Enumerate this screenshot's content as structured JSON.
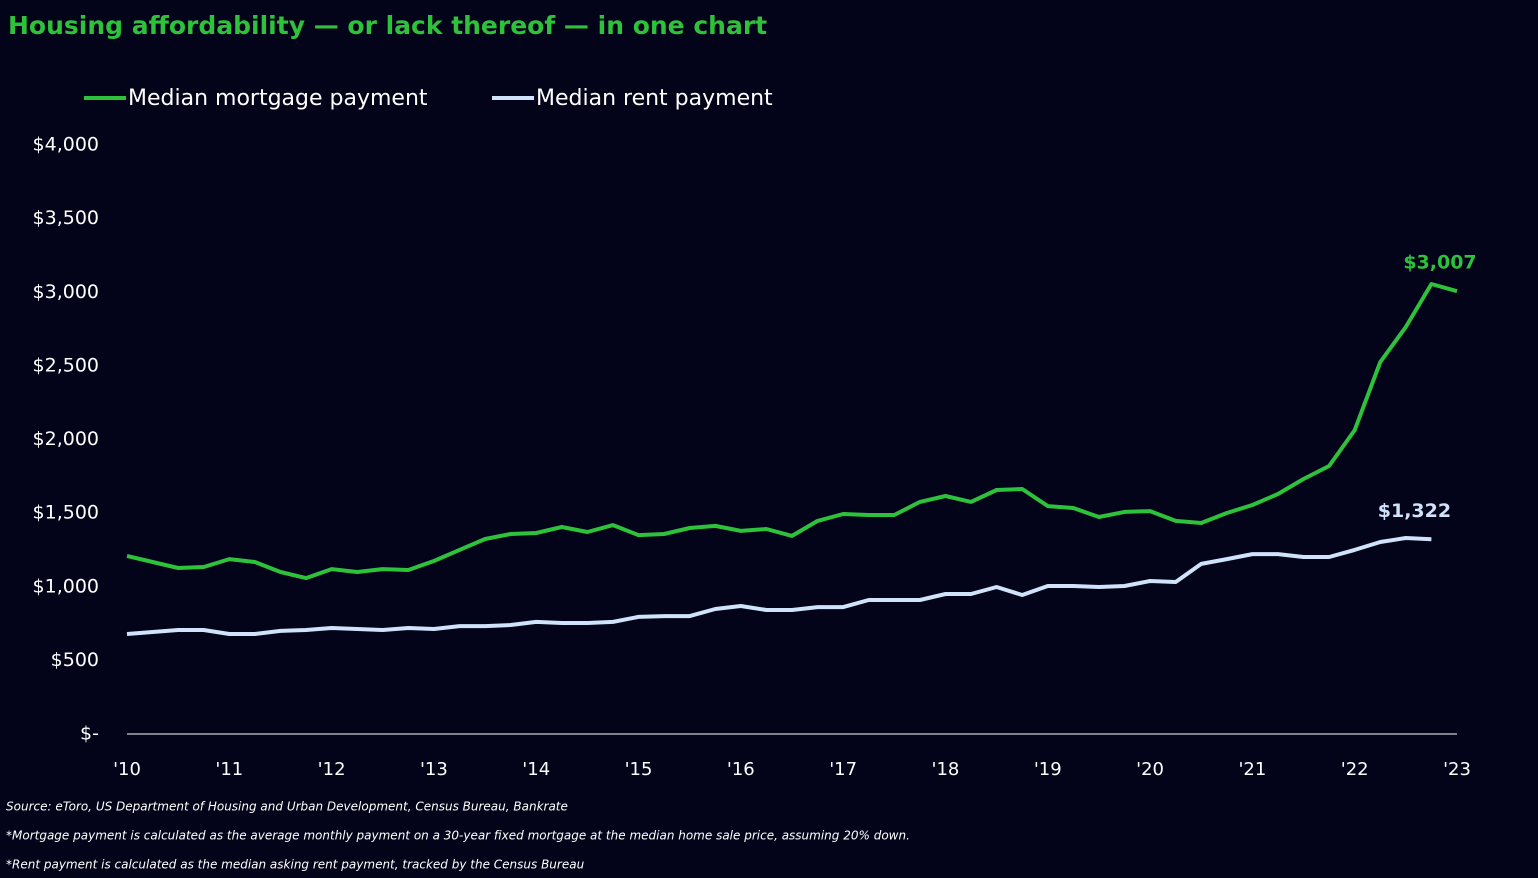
{
  "chart_data": {
    "type": "line",
    "title": "Housing affordability — or lack thereof — in one chart",
    "x": [
      2010,
      2010.25,
      2010.5,
      2010.75,
      2011,
      2011.25,
      2011.5,
      2011.75,
      2012,
      2012.25,
      2012.5,
      2012.75,
      2013,
      2013.25,
      2013.5,
      2013.75,
      2014,
      2014.25,
      2014.5,
      2014.75,
      2015,
      2015.25,
      2015.5,
      2015.75,
      2016,
      2016.25,
      2016.5,
      2016.75,
      2017,
      2017.25,
      2017.5,
      2017.75,
      2018,
      2018.25,
      2018.5,
      2018.75,
      2019,
      2019.25,
      2019.5,
      2019.75,
      2020,
      2020.25,
      2020.5,
      2020.75,
      2021,
      2021.25,
      2021.5,
      2021.75,
      2022,
      2022.25,
      2022.5,
      2022.75,
      2023
    ],
    "series": [
      {
        "name": "Median mortgage payment",
        "color": "#2ec23a",
        "values": [
          1209,
          1168,
          1127,
          1134,
          1188,
          1168,
          1100,
          1059,
          1120,
          1100,
          1120,
          1114,
          1175,
          1250,
          1324,
          1358,
          1365,
          1406,
          1372,
          1419,
          1351,
          1358,
          1399,
          1413,
          1379,
          1392,
          1345,
          1447,
          1494,
          1487,
          1487,
          1576,
          1616,
          1576,
          1657,
          1664,
          1548,
          1535,
          1474,
          1508,
          1514,
          1447,
          1433,
          1501,
          1555,
          1630,
          1732,
          1820,
          2064,
          2526,
          2764,
          3056,
          3007
        ],
        "value_labels": [
          null,
          null,
          null,
          null,
          null,
          null,
          null,
          null,
          null,
          null,
          null,
          null,
          null,
          null,
          null,
          null,
          null,
          null,
          null,
          null,
          null,
          null,
          null,
          null,
          null,
          null,
          null,
          null,
          null,
          null,
          null,
          null,
          null,
          null,
          null,
          null,
          null,
          null,
          null,
          null,
          null,
          null,
          null,
          null,
          null,
          null,
          null,
          null,
          null,
          null,
          null,
          null,
          "$3,007"
        ]
      },
      {
        "name": "Median rent payment",
        "color": "#cfe3fb",
        "values": [
          679,
          693,
          706,
          706,
          679,
          679,
          700,
          706,
          720,
          713,
          706,
          720,
          713,
          733,
          733,
          740,
          761,
          754,
          754,
          761,
          795,
          801,
          801,
          849,
          869,
          842,
          842,
          862,
          862,
          910,
          910,
          910,
          951,
          951,
          998,
          944,
          1005,
          1005,
          998,
          1005,
          1039,
          1032,
          1155,
          1188,
          1222,
          1222,
          1202,
          1202,
          1250,
          1304,
          1331,
          1322,
          null
        ],
        "value_labels": [
          null,
          null,
          null,
          null,
          null,
          null,
          null,
          null,
          null,
          null,
          null,
          null,
          null,
          null,
          null,
          null,
          null,
          null,
          null,
          null,
          null,
          null,
          null,
          null,
          null,
          null,
          null,
          null,
          null,
          null,
          null,
          null,
          null,
          null,
          null,
          null,
          null,
          null,
          null,
          null,
          null,
          null,
          null,
          null,
          null,
          null,
          null,
          null,
          null,
          null,
          null,
          "$1,322",
          null
        ]
      }
    ],
    "xlim": [
      2010,
      2023
    ],
    "xticks": [
      {
        "value": 2010,
        "label": "'10"
      },
      {
        "value": 2011,
        "label": "'11"
      },
      {
        "value": 2012,
        "label": "'12"
      },
      {
        "value": 2013,
        "label": "'13"
      },
      {
        "value": 2014,
        "label": "'14"
      },
      {
        "value": 2015,
        "label": "'15"
      },
      {
        "value": 2016,
        "label": "'16"
      },
      {
        "value": 2017,
        "label": "'17"
      },
      {
        "value": 2018,
        "label": "'18"
      },
      {
        "value": 2019,
        "label": "'19"
      },
      {
        "value": 2020,
        "label": "'20"
      },
      {
        "value": 2021,
        "label": "'21"
      },
      {
        "value": 2022,
        "label": "'22"
      },
      {
        "value": 2023,
        "label": "'23"
      }
    ],
    "ylim": [
      0,
      4000
    ],
    "yticks": [
      {
        "value": 0,
        "label": "$-"
      },
      {
        "value": 500,
        "label": "$500"
      },
      {
        "value": 1000,
        "label": "$1,000"
      },
      {
        "value": 1500,
        "label": "$1,500"
      },
      {
        "value": 2000,
        "label": "$2,000"
      },
      {
        "value": 2500,
        "label": "$2,500"
      },
      {
        "value": 3000,
        "label": "$3,000"
      },
      {
        "value": 3500,
        "label": "$3,500"
      },
      {
        "value": 4000,
        "label": "$4,000"
      }
    ],
    "grid": false,
    "legend": "top-left",
    "source": "Source: eToro, US Department of Housing and Urban Development, Census Bureau, Bankrate",
    "notes": [
      "*Mortgage payment is calculated as the average monthly payment on a 30-year fixed mortgage at the median home sale price, assuming 20% down.",
      "*Rent payment is calculated as the median asking rent payment, tracked by the Census Bureau"
    ]
  }
}
